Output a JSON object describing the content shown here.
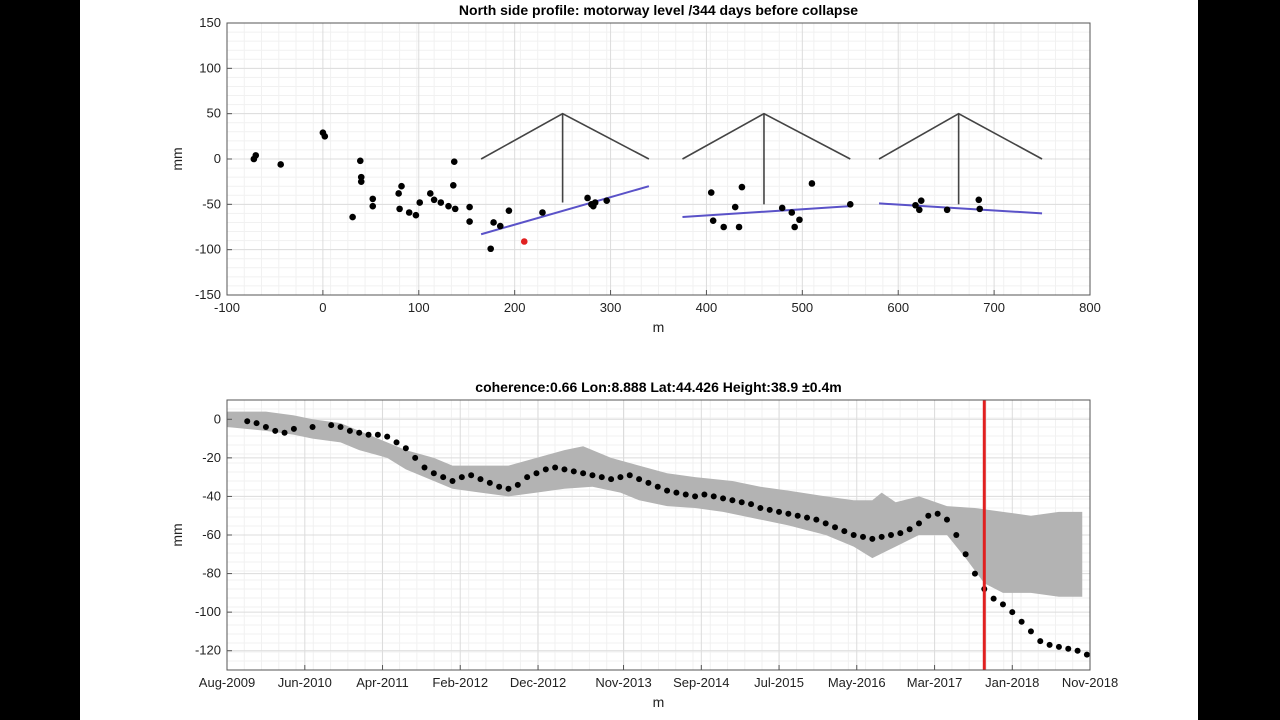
{
  "chart_data": [
    {
      "type": "scatter",
      "title": "North side profile: motorway level /344 days before collapse",
      "xlabel": "m",
      "ylabel": "mm",
      "xlim": [
        -100,
        800
      ],
      "ylim": [
        -150,
        150
      ],
      "xticks": [
        -100,
        0,
        100,
        200,
        300,
        400,
        500,
        600,
        700,
        800
      ],
      "xtick_labels": [
        "-100",
        "0",
        "100",
        "200",
        "300",
        "400",
        "500",
        "600",
        "700",
        "800"
      ],
      "yticks": [
        150,
        100,
        50,
        0,
        -50,
        -100,
        -150
      ],
      "ytick_labels": [
        "150",
        "100",
        "50",
        "0",
        "-50",
        "-100",
        "-150"
      ],
      "grid": true,
      "points": [
        [
          -72,
          0
        ],
        [
          -70,
          4
        ],
        [
          -44,
          -6
        ],
        [
          0,
          29
        ],
        [
          2,
          25
        ],
        [
          31,
          -64
        ],
        [
          39,
          -2
        ],
        [
          40,
          -20
        ],
        [
          40,
          -25
        ],
        [
          52,
          -44
        ],
        [
          52,
          -52
        ],
        [
          79,
          -38
        ],
        [
          80,
          -55
        ],
        [
          82,
          -30
        ],
        [
          90,
          -59
        ],
        [
          97,
          -62
        ],
        [
          101,
          -48
        ],
        [
          112,
          -38
        ],
        [
          116,
          -45
        ],
        [
          123,
          -48
        ],
        [
          131,
          -52
        ],
        [
          136,
          -29
        ],
        [
          137,
          -3
        ],
        [
          138,
          -55
        ],
        [
          153,
          -53
        ],
        [
          153,
          -69
        ],
        [
          175,
          -99
        ],
        [
          178,
          -70
        ],
        [
          185,
          -74
        ],
        [
          194,
          -57
        ],
        [
          229,
          -59
        ],
        [
          276,
          -43
        ],
        [
          280,
          -50
        ],
        [
          282,
          -52
        ],
        [
          284,
          -48
        ],
        [
          296,
          -46
        ],
        [
          405,
          -37
        ],
        [
          407,
          -68
        ],
        [
          418,
          -75
        ],
        [
          430,
          -53
        ],
        [
          434,
          -75
        ],
        [
          437,
          -31
        ],
        [
          479,
          -54
        ],
        [
          489,
          -59
        ],
        [
          492,
          -75
        ],
        [
          497,
          -67
        ],
        [
          510,
          -27
        ],
        [
          550,
          -50
        ],
        [
          618,
          -51
        ],
        [
          622,
          -56
        ],
        [
          624,
          -46
        ],
        [
          651,
          -56
        ],
        [
          684,
          -45
        ],
        [
          685,
          -55
        ]
      ],
      "highlight_point": [
        210,
        -91
      ],
      "fit_lines": [
        [
          [
            165,
            -83
          ],
          [
            340,
            -30
          ]
        ],
        [
          [
            375,
            -64
          ],
          [
            550,
            -52
          ]
        ],
        [
          [
            580,
            -49
          ],
          [
            750,
            -60
          ]
        ]
      ],
      "pier_schematics": [
        {
          "left": [
            165,
            0
          ],
          "top": [
            250,
            50
          ],
          "right": [
            340,
            0
          ],
          "base": [
            250,
            -48
          ]
        },
        {
          "left": [
            375,
            0
          ],
          "top": [
            460,
            50
          ],
          "right": [
            550,
            0
          ],
          "base": [
            460,
            -50
          ]
        },
        {
          "left": [
            580,
            0
          ],
          "top": [
            663,
            50
          ],
          "right": [
            750,
            0
          ],
          "base": [
            663,
            -50
          ]
        }
      ],
      "colors": {
        "points": "#000000",
        "highlight": "#e02020",
        "fit": "#5a52c8",
        "schematic": "#444444"
      }
    },
    {
      "type": "scatter",
      "title": "coherence:0.66 Lon:8.888 Lat:44.426 Height:38.9 ±0.4m",
      "xlabel": "m",
      "ylabel": "mm",
      "xlim": [
        2009.583,
        2018.833
      ],
      "ylim": [
        -130,
        10
      ],
      "xticks": [
        2009.583,
        2010.417,
        2011.25,
        2012.083,
        2012.917,
        2013.833,
        2014.667,
        2015.5,
        2016.333,
        2017.167,
        2018.0,
        2018.833
      ],
      "xtick_labels": [
        "Aug-2009",
        "Jun-2010",
        "Apr-2011",
        "Feb-2012",
        "Dec-2012",
        "Nov-2013",
        "Sep-2014",
        "Jul-2015",
        "May-2016",
        "Mar-2017",
        "Jan-2018",
        "Nov-2018"
      ],
      "yticks": [
        0,
        -20,
        -40,
        -60,
        -80,
        -100,
        -120
      ],
      "ytick_labels": [
        "0",
        "-20",
        "-40",
        "-60",
        "-80",
        "-100",
        "-120"
      ],
      "grid": true,
      "band_upper": [
        [
          2009.583,
          4
        ],
        [
          2010.0,
          4
        ],
        [
          2010.3,
          2
        ],
        [
          2010.5,
          0
        ],
        [
          2010.8,
          -2
        ],
        [
          2011.0,
          -6
        ],
        [
          2011.3,
          -12
        ],
        [
          2011.5,
          -16
        ],
        [
          2011.8,
          -20
        ],
        [
          2012.0,
          -24
        ],
        [
          2012.3,
          -24
        ],
        [
          2012.6,
          -24
        ],
        [
          2012.9,
          -20
        ],
        [
          2013.2,
          -16
        ],
        [
          2013.4,
          -14
        ],
        [
          2013.7,
          -20
        ],
        [
          2014.0,
          -24
        ],
        [
          2014.3,
          -28
        ],
        [
          2014.6,
          -30
        ],
        [
          2015.0,
          -32
        ],
        [
          2015.3,
          -35
        ],
        [
          2015.6,
          -37
        ],
        [
          2016.0,
          -40
        ],
        [
          2016.3,
          -42
        ],
        [
          2016.5,
          -42
        ],
        [
          2016.6,
          -38
        ],
        [
          2016.75,
          -43
        ],
        [
          2017.0,
          -40
        ],
        [
          2017.3,
          -45
        ],
        [
          2017.6,
          -46
        ],
        [
          2017.9,
          -48
        ],
        [
          2018.2,
          -50
        ],
        [
          2018.5,
          -48
        ],
        [
          2018.75,
          -48
        ]
      ],
      "band_lower": [
        [
          2009.583,
          -4
        ],
        [
          2010.0,
          -6
        ],
        [
          2010.3,
          -8
        ],
        [
          2010.5,
          -10
        ],
        [
          2010.8,
          -12
        ],
        [
          2011.0,
          -16
        ],
        [
          2011.3,
          -20
        ],
        [
          2011.5,
          -26
        ],
        [
          2011.8,
          -32
        ],
        [
          2012.0,
          -36
        ],
        [
          2012.3,
          -38
        ],
        [
          2012.6,
          -40
        ],
        [
          2012.9,
          -38
        ],
        [
          2013.2,
          -36
        ],
        [
          2013.5,
          -35
        ],
        [
          2013.8,
          -38
        ],
        [
          2014.0,
          -42
        ],
        [
          2014.3,
          -45
        ],
        [
          2014.6,
          -46
        ],
        [
          2014.9,
          -48
        ],
        [
          2015.3,
          -52
        ],
        [
          2015.6,
          -55
        ],
        [
          2016.0,
          -60
        ],
        [
          2016.3,
          -66
        ],
        [
          2016.5,
          -72
        ],
        [
          2016.75,
          -66
        ],
        [
          2017.0,
          -60
        ],
        [
          2017.3,
          -60
        ],
        [
          2017.5,
          -72
        ],
        [
          2017.7,
          -85
        ],
        [
          2017.9,
          -90
        ],
        [
          2018.2,
          -90
        ],
        [
          2018.5,
          -92
        ],
        [
          2018.75,
          -92
        ]
      ],
      "points": [
        [
          2009.8,
          -1
        ],
        [
          2009.9,
          -2
        ],
        [
          2010.0,
          -4
        ],
        [
          2010.1,
          -6
        ],
        [
          2010.2,
          -7
        ],
        [
          2010.3,
          -5
        ],
        [
          2010.5,
          -4
        ],
        [
          2010.7,
          -3
        ],
        [
          2010.8,
          -4
        ],
        [
          2010.9,
          -6
        ],
        [
          2011.0,
          -7
        ],
        [
          2011.1,
          -8
        ],
        [
          2011.2,
          -8
        ],
        [
          2011.3,
          -9
        ],
        [
          2011.4,
          -12
        ],
        [
          2011.5,
          -15
        ],
        [
          2011.6,
          -20
        ],
        [
          2011.7,
          -25
        ],
        [
          2011.8,
          -28
        ],
        [
          2011.9,
          -30
        ],
        [
          2012.0,
          -32
        ],
        [
          2012.1,
          -30
        ],
        [
          2012.2,
          -29
        ],
        [
          2012.3,
          -31
        ],
        [
          2012.4,
          -33
        ],
        [
          2012.5,
          -35
        ],
        [
          2012.6,
          -36
        ],
        [
          2012.7,
          -34
        ],
        [
          2012.8,
          -30
        ],
        [
          2012.9,
          -28
        ],
        [
          2013.0,
          -26
        ],
        [
          2013.1,
          -25
        ],
        [
          2013.2,
          -26
        ],
        [
          2013.3,
          -27
        ],
        [
          2013.4,
          -28
        ],
        [
          2013.5,
          -29
        ],
        [
          2013.6,
          -30
        ],
        [
          2013.7,
          -31
        ],
        [
          2013.8,
          -30
        ],
        [
          2013.9,
          -29
        ],
        [
          2014.0,
          -31
        ],
        [
          2014.1,
          -33
        ],
        [
          2014.2,
          -35
        ],
        [
          2014.3,
          -37
        ],
        [
          2014.4,
          -38
        ],
        [
          2014.5,
          -39
        ],
        [
          2014.6,
          -40
        ],
        [
          2014.7,
          -39
        ],
        [
          2014.8,
          -40
        ],
        [
          2014.9,
          -41
        ],
        [
          2015.0,
          -42
        ],
        [
          2015.1,
          -43
        ],
        [
          2015.2,
          -44
        ],
        [
          2015.3,
          -46
        ],
        [
          2015.4,
          -47
        ],
        [
          2015.5,
          -48
        ],
        [
          2015.6,
          -49
        ],
        [
          2015.7,
          -50
        ],
        [
          2015.8,
          -51
        ],
        [
          2015.9,
          -52
        ],
        [
          2016.0,
          -54
        ],
        [
          2016.1,
          -56
        ],
        [
          2016.2,
          -58
        ],
        [
          2016.3,
          -60
        ],
        [
          2016.4,
          -61
        ],
        [
          2016.5,
          -62
        ],
        [
          2016.6,
          -61
        ],
        [
          2016.7,
          -60
        ],
        [
          2016.8,
          -59
        ],
        [
          2016.9,
          -57
        ],
        [
          2017.0,
          -54
        ],
        [
          2017.1,
          -50
        ],
        [
          2017.2,
          -49
        ],
        [
          2017.3,
          -52
        ],
        [
          2017.4,
          -60
        ],
        [
          2017.5,
          -70
        ],
        [
          2017.6,
          -80
        ],
        [
          2017.7,
          -88
        ],
        [
          2017.8,
          -93
        ],
        [
          2017.9,
          -96
        ],
        [
          2018.0,
          -100
        ],
        [
          2018.1,
          -105
        ],
        [
          2018.2,
          -110
        ],
        [
          2018.3,
          -115
        ],
        [
          2018.4,
          -117
        ],
        [
          2018.5,
          -118
        ],
        [
          2018.6,
          -119
        ],
        [
          2018.7,
          -120
        ],
        [
          2018.8,
          -122
        ]
      ],
      "event_line_x": 2017.7,
      "colors": {
        "points": "#000000",
        "band": "#b3b3b3",
        "event_line": "#e02020"
      }
    }
  ]
}
